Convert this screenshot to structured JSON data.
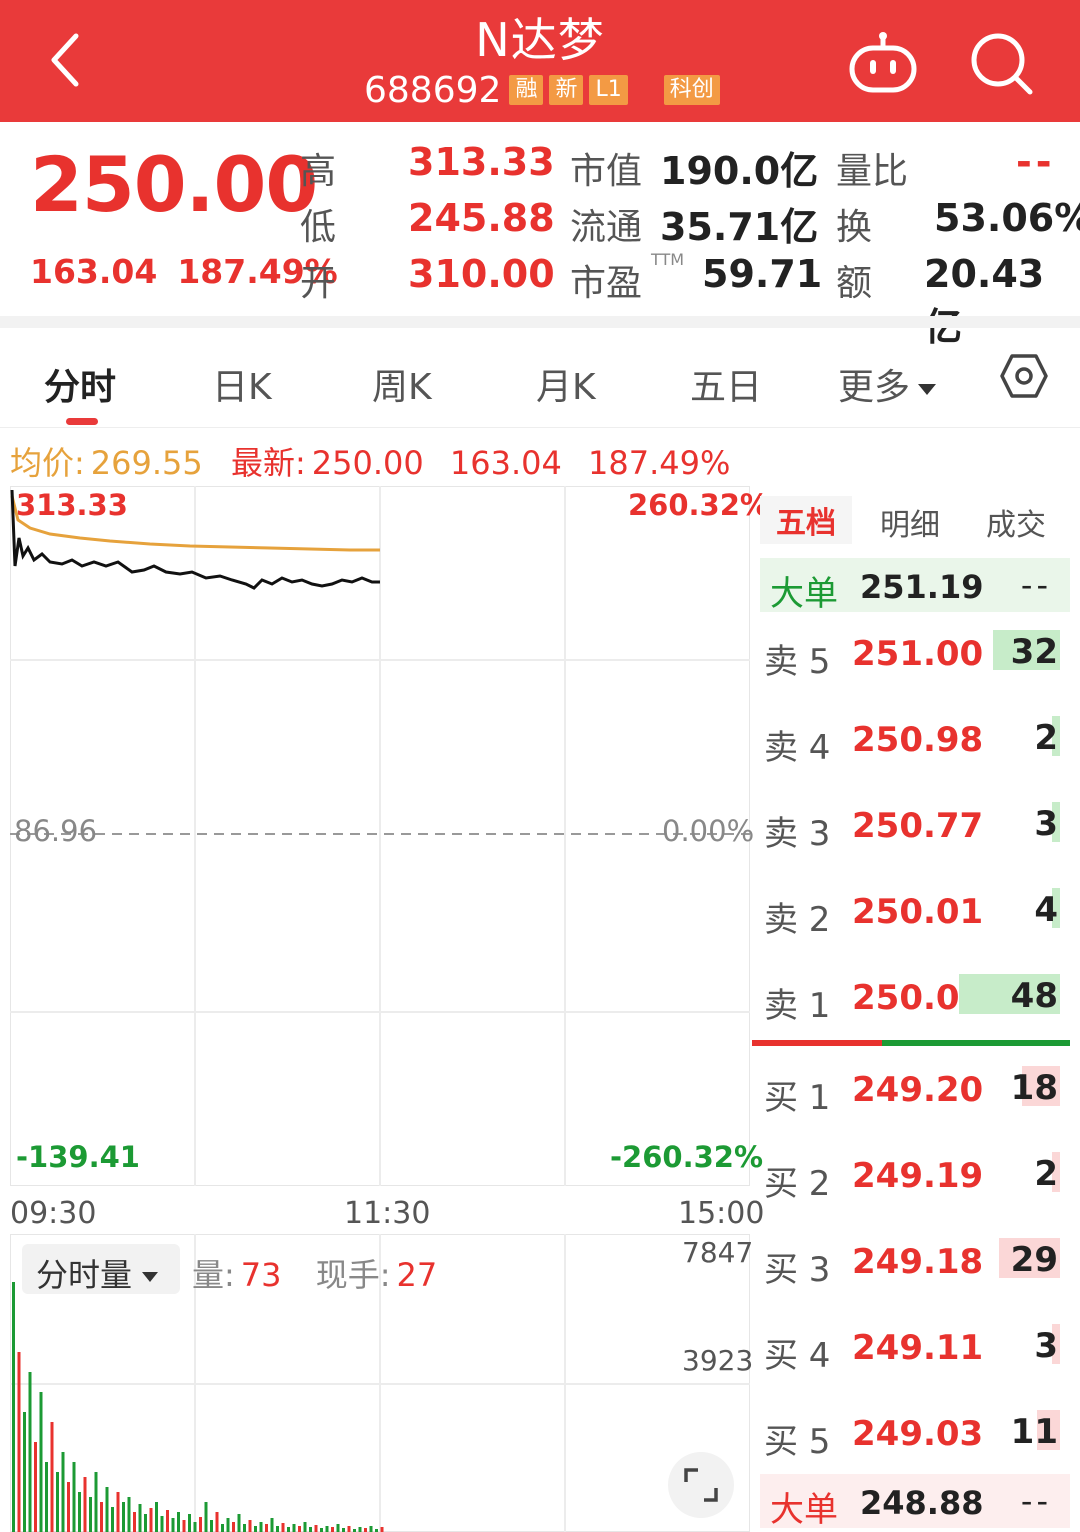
{
  "header": {
    "title": "N达梦",
    "code": "688692",
    "tags": [
      "融",
      "新",
      "L1",
      "科创"
    ]
  },
  "quote": {
    "price": "250.00",
    "change": "163.04",
    "change_pct": "187.49%",
    "high_label": "高",
    "high": "313.33",
    "low_label": "低",
    "low": "245.88",
    "open_label": "开",
    "open": "310.00",
    "mktcap_label": "市值",
    "mktcap": "190.0亿",
    "float_label": "流通",
    "float": "35.71亿",
    "pe_label": "市盈",
    "pe_sup": "TTM",
    "pe": "59.71",
    "volratio_label": "量比",
    "volratio": "--",
    "turnover_label": "换",
    "turnover": "53.06%",
    "amount_label": "额",
    "amount": "20.43亿"
  },
  "tabs": [
    {
      "label": "分时",
      "active": true
    },
    {
      "label": "日K"
    },
    {
      "label": "周K"
    },
    {
      "label": "月K"
    },
    {
      "label": "五日"
    },
    {
      "label": "更多"
    }
  ],
  "info": {
    "avg_label": "均价:",
    "avg": "269.55",
    "latest_label": "最新:",
    "latest": "250.00",
    "change": "163.04",
    "change_pct": "187.49%"
  },
  "chart": {
    "y_top": "313.33",
    "y_mid": "86.96",
    "y_bottom": "-139.41",
    "pct_top": "260.32%",
    "pct_mid": "0.00%",
    "pct_bottom": "-260.32%",
    "times": [
      "09:30",
      "11:30",
      "15:00"
    ]
  },
  "chart_data": {
    "type": "line",
    "series": [
      {
        "values": [
          313.33,
          287,
          280,
          279,
          276,
          273,
          270,
          269.55
        ]
      },
      {
        "values": [
          313.33,
          260,
          258,
          255,
          252,
          250,
          248,
          250.0
        ]
      }
    ],
    "ylim": [
      -139.41,
      313.33
    ],
    "ylabel_left": [
      "313.33",
      "86.96",
      "-139.41"
    ],
    "ylabel_right": [
      "260.32%",
      "0.00%",
      "-260.32%"
    ],
    "xlabels": [
      "09:30",
      "11:30",
      "15:00"
    ]
  },
  "volume": {
    "selector": "分时量",
    "vol_label": "量:",
    "vol": "73",
    "hand_label": "现手:",
    "hand": "27",
    "axis_top": "7847",
    "axis_mid": "3923"
  },
  "book": {
    "tabs": [
      "五档",
      "明细",
      "成交"
    ],
    "big_sell": {
      "label": "大单",
      "price": "251.19",
      "value": "--"
    },
    "sells": [
      {
        "label": "卖 5",
        "price": "251.00",
        "qty": "32",
        "fill": 0.32
      },
      {
        "label": "卖 4",
        "price": "250.98",
        "qty": "2",
        "fill": 0.03
      },
      {
        "label": "卖 3",
        "price": "250.77",
        "qty": "3",
        "fill": 0.03
      },
      {
        "label": "卖 2",
        "price": "250.01",
        "qty": "4",
        "fill": 0.04
      },
      {
        "label": "卖 1",
        "price": "250.00",
        "qty": "48",
        "fill": 0.48
      }
    ],
    "buys": [
      {
        "label": "买 1",
        "price": "249.20",
        "qty": "18",
        "fill": 0.18
      },
      {
        "label": "买 2",
        "price": "249.19",
        "qty": "2",
        "fill": 0.03
      },
      {
        "label": "买 3",
        "price": "249.18",
        "qty": "29",
        "fill": 0.29
      },
      {
        "label": "买 4",
        "price": "249.11",
        "qty": "3",
        "fill": 0.03
      },
      {
        "label": "买 5",
        "price": "249.03",
        "qty": "11",
        "fill": 0.11
      }
    ],
    "big_buy": {
      "label": "大单",
      "price": "248.88",
      "value": "--"
    },
    "colors": {
      "up": "#e8322e",
      "down": "#1c9a34",
      "sell_bar": "#c7ecc9",
      "buy_bar": "#fbd7d7"
    }
  }
}
